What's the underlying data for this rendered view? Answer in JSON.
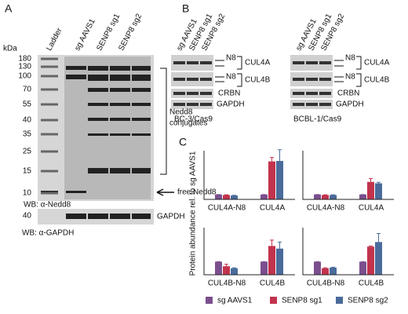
{
  "panel_a": {
    "letter": "A",
    "kda_label": "kDa",
    "kda_ticks": [
      180,
      130,
      100,
      70,
      55,
      40,
      35,
      25,
      15,
      10
    ],
    "lanes": [
      "Ladder",
      "sg AAVS1",
      "SENP8 sg1",
      "SENP8 sg2"
    ],
    "bracket_label": [
      "Nedd8",
      "conjugates"
    ],
    "arrow_label": "free Nedd8",
    "wb_nedd8": "WB: α-Nedd8",
    "gapdh_kda": 40,
    "gapdh_label": "GAPDH",
    "wb_gapdh": "WB: α-GAPDH"
  },
  "panel_b": {
    "letter": "B",
    "blots": [
      {
        "lanes": [
          "sg AAVS1",
          "SENP8 sg1",
          "SENP8 sg2"
        ],
        "n8": [
          "N8",
          "N8"
        ],
        "proteins": [
          "CUL4A",
          "CUL4B",
          "CRBN",
          "GAPDH"
        ],
        "cell_line": "BC-3/Cas9"
      },
      {
        "lanes": [
          "sg AAVS1",
          "SENP8 sg1",
          "SENP8 sg2"
        ],
        "n8": [
          "N8",
          "N8"
        ],
        "proteins": [
          "CUL4A",
          "CUL4B",
          "CRBN",
          "GAPDH"
        ],
        "cell_line": "BCBL-1/Cas9"
      }
    ]
  },
  "panel_c": {
    "letter": "C"
  },
  "chart_data": [
    {
      "type": "bar",
      "ylabel": "Protein abundance rel. to sg AAVS1",
      "categories": [
        "CUL4A-N8",
        "CUL4A"
      ],
      "ylim": [
        0,
        10
      ],
      "series": [
        {
          "name": "sg AAVS1",
          "color": "#7b4f8e",
          "values": [
            1,
            1
          ],
          "errors": [
            0,
            0
          ]
        },
        {
          "name": "SENP8 sg1",
          "color": "#c2334d",
          "values": [
            0.9,
            7.8
          ],
          "errors": [
            0.05,
            0.8
          ]
        },
        {
          "name": "SENP8 sg2",
          "color": "#4a6b9b",
          "values": [
            0.8,
            7.9
          ],
          "errors": [
            0.05,
            2.3
          ]
        }
      ]
    },
    {
      "type": "bar",
      "categories": [
        "CUL4A-N8",
        "CUL4A"
      ],
      "ylim": [
        0,
        10
      ],
      "series": [
        {
          "color": "#7b4f8e",
          "values": [
            1,
            1
          ],
          "errors": [
            0,
            0
          ]
        },
        {
          "color": "#c2334d",
          "values": [
            0.9,
            3.6
          ],
          "errors": [
            0.05,
            0.7
          ]
        },
        {
          "color": "#4a6b9b",
          "values": [
            0.9,
            3.3
          ],
          "errors": [
            0.05,
            0.2
          ]
        }
      ]
    },
    {
      "type": "bar",
      "categories": [
        "CUL4B-N8",
        "CUL4B"
      ],
      "ylim": [
        0,
        3.6
      ],
      "series": [
        {
          "color": "#7b4f8e",
          "values": [
            1,
            1
          ],
          "errors": [
            0,
            0
          ]
        },
        {
          "color": "#c2334d",
          "values": [
            0.65,
            2.2
          ],
          "errors": [
            0.15,
            0.45
          ]
        },
        {
          "color": "#4a6b9b",
          "values": [
            0.5,
            2.0
          ],
          "errors": [
            0.03,
            0.5
          ]
        }
      ]
    },
    {
      "type": "bar",
      "categories": [
        "CUL4B-N8",
        "CUL4B"
      ],
      "ylim": [
        0,
        3.6
      ],
      "series": [
        {
          "color": "#7b4f8e",
          "values": [
            1,
            1
          ],
          "errors": [
            0,
            0
          ]
        },
        {
          "color": "#c2334d",
          "values": [
            0.5,
            2.15
          ],
          "errors": [
            0.03,
            0.05
          ]
        },
        {
          "color": "#4a6b9b",
          "values": [
            0.55,
            2.5
          ],
          "errors": [
            0.03,
            0.65
          ]
        }
      ]
    }
  ]
}
